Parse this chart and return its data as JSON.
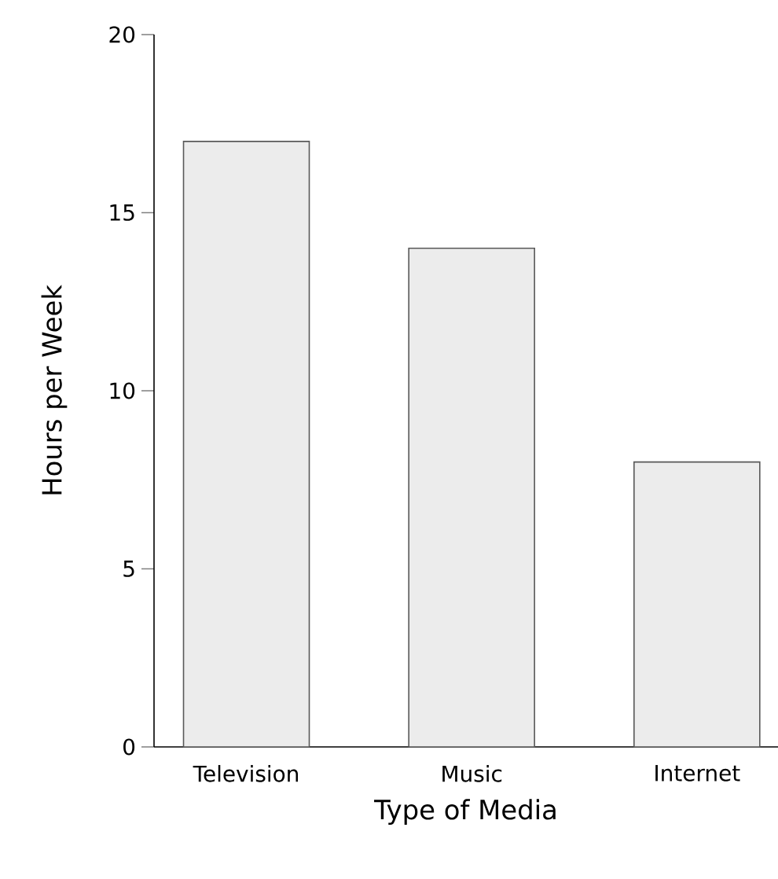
{
  "chart_data": {
    "type": "bar",
    "xlabel": "Type of Media",
    "ylabel": "Hours per Week",
    "categories": [
      "Television",
      "Music",
      "Internet"
    ],
    "values": [
      17,
      14,
      8
    ],
    "color": "#ececec",
    "ylim": [
      0,
      20
    ],
    "yticks": [
      0,
      5,
      10,
      15,
      20
    ],
    "grid": false
  }
}
